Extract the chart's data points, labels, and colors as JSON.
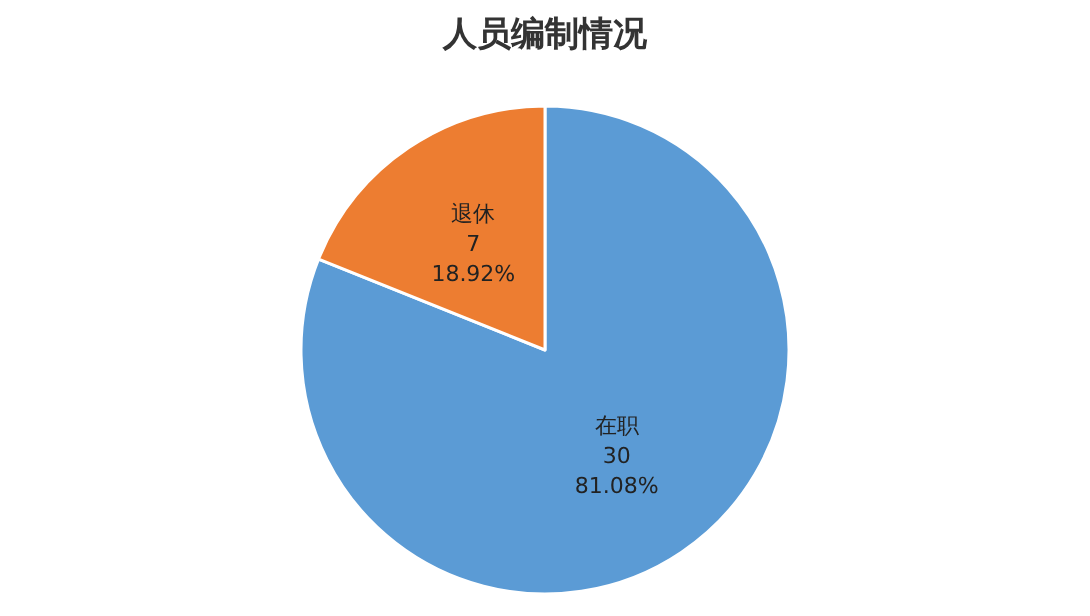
{
  "chart_data": {
    "type": "pie",
    "title": "人员编制情况",
    "categories": [
      "在职",
      "退休"
    ],
    "values": [
      30,
      7
    ],
    "colors": [
      "#5b9bd5",
      "#ed7d31"
    ],
    "value_labels": [
      "30\n81.08%",
      "7\n18.92%"
    ],
    "legend": false
  }
}
